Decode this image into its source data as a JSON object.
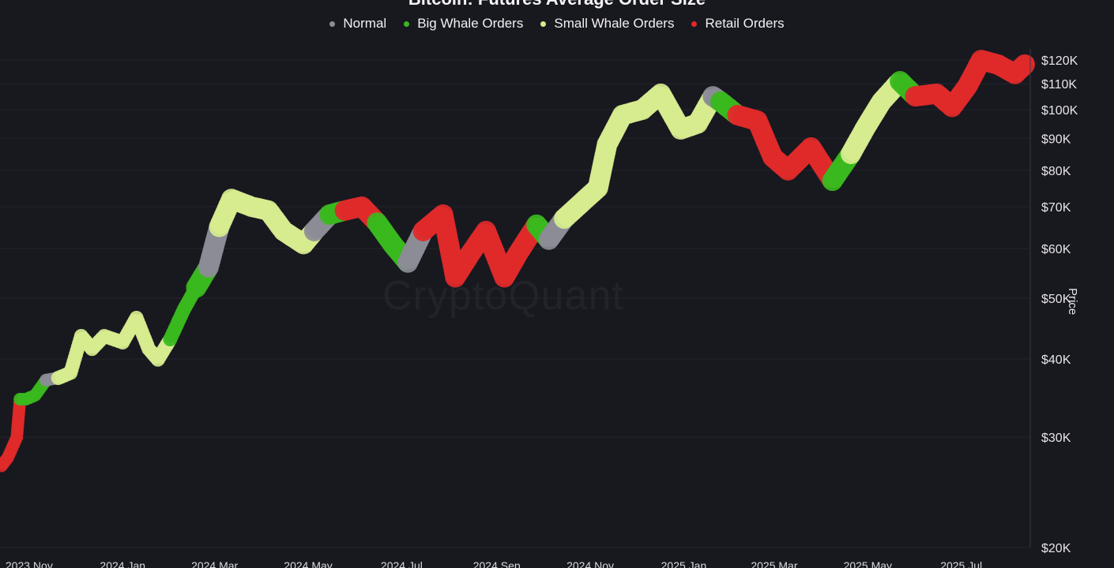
{
  "chart_data": {
    "type": "scatter",
    "title": "Bitcoin: Futures Average Order Size",
    "ylabel": "Price",
    "watermark": "CryptoQuant",
    "y_scale": "log",
    "ylim": [
      20000,
      125000
    ],
    "xlim": [
      "2023-10-13",
      "2025-08-15"
    ],
    "legend_position": "top-center",
    "legend": [
      {
        "name": "Normal",
        "color": "#8c8c96"
      },
      {
        "name": "Big Whale Orders",
        "color": "#3ab81e"
      },
      {
        "name": "Small Whale Orders",
        "color": "#d7ec8f"
      },
      {
        "name": "Retail Orders",
        "color": "#e02a2a"
      }
    ],
    "y_ticks": [
      {
        "label": "$20K",
        "value": 20000
      },
      {
        "label": "$30K",
        "value": 30000
      },
      {
        "label": "$40K",
        "value": 40000
      },
      {
        "label": "$50K",
        "value": 50000
      },
      {
        "label": "$60K",
        "value": 60000
      },
      {
        "label": "$70K",
        "value": 70000
      },
      {
        "label": "$80K",
        "value": 80000
      },
      {
        "label": "$90K",
        "value": 90000
      },
      {
        "label": "$100K",
        "value": 100000
      },
      {
        "label": "$110K",
        "value": 110000
      },
      {
        "label": "$120K",
        "value": 120000
      }
    ],
    "x_ticks": [
      {
        "label": "2023 Nov",
        "date": "2023-11-01"
      },
      {
        "label": "2024 Jan",
        "date": "2024-01-01"
      },
      {
        "label": "2024 Mar",
        "date": "2024-03-01"
      },
      {
        "label": "2024 May",
        "date": "2024-05-01"
      },
      {
        "label": "2024 Jul",
        "date": "2024-07-01"
      },
      {
        "label": "2024 Sep",
        "date": "2024-09-01"
      },
      {
        "label": "2024 Nov",
        "date": "2024-11-01"
      },
      {
        "label": "2025 Jan",
        "date": "2025-01-01"
      },
      {
        "label": "2025 Mar",
        "date": "2025-03-01"
      },
      {
        "label": "2025 May",
        "date": "2025-05-01"
      },
      {
        "label": "2025 Jul",
        "date": "2025-07-01"
      }
    ],
    "series": [
      {
        "name": "Price",
        "points": [
          {
            "date": "2023-10-14",
            "price": 27000,
            "class": "Retail Orders"
          },
          {
            "date": "2023-10-18",
            "price": 27800,
            "class": "Retail Orders"
          },
          {
            "date": "2023-10-20",
            "price": 28500,
            "class": "Retail Orders"
          },
          {
            "date": "2023-10-24",
            "price": 30000,
            "class": "Retail Orders"
          },
          {
            "date": "2023-10-26",
            "price": 34500,
            "class": "Big Whale Orders"
          },
          {
            "date": "2023-10-30",
            "price": 34500,
            "class": "Big Whale Orders"
          },
          {
            "date": "2023-11-05",
            "price": 35000,
            "class": "Big Whale Orders"
          },
          {
            "date": "2023-11-12",
            "price": 37000,
            "class": "Normal"
          },
          {
            "date": "2023-11-20",
            "price": 37300,
            "class": "Small Whale Orders"
          },
          {
            "date": "2023-11-28",
            "price": 38000,
            "class": "Small Whale Orders"
          },
          {
            "date": "2023-12-05",
            "price": 43500,
            "class": "Small Whale Orders"
          },
          {
            "date": "2023-12-12",
            "price": 41500,
            "class": "Small Whale Orders"
          },
          {
            "date": "2023-12-20",
            "price": 43500,
            "class": "Small Whale Orders"
          },
          {
            "date": "2024-01-01",
            "price": 42500,
            "class": "Small Whale Orders"
          },
          {
            "date": "2024-01-10",
            "price": 46500,
            "class": "Small Whale Orders"
          },
          {
            "date": "2024-01-18",
            "price": 41500,
            "class": "Small Whale Orders"
          },
          {
            "date": "2024-01-24",
            "price": 39900,
            "class": "Small Whale Orders"
          },
          {
            "date": "2024-02-01",
            "price": 43000,
            "class": "Big Whale Orders"
          },
          {
            "date": "2024-02-10",
            "price": 48000,
            "class": "Big Whale Orders"
          },
          {
            "date": "2024-02-18",
            "price": 52000,
            "class": "Big Whale Orders"
          },
          {
            "date": "2024-02-26",
            "price": 56000,
            "class": "Normal"
          },
          {
            "date": "2024-03-04",
            "price": 65000,
            "class": "Small Whale Orders"
          },
          {
            "date": "2024-03-12",
            "price": 72000,
            "class": "Small Whale Orders"
          },
          {
            "date": "2024-03-25",
            "price": 70000,
            "class": "Small Whale Orders"
          },
          {
            "date": "2024-04-05",
            "price": 69000,
            "class": "Small Whale Orders"
          },
          {
            "date": "2024-04-15",
            "price": 64000,
            "class": "Small Whale Orders"
          },
          {
            "date": "2024-04-28",
            "price": 61000,
            "class": "Small Whale Orders"
          },
          {
            "date": "2024-05-05",
            "price": 64000,
            "class": "Normal"
          },
          {
            "date": "2024-05-15",
            "price": 68000,
            "class": "Big Whale Orders"
          },
          {
            "date": "2024-05-25",
            "price": 69000,
            "class": "Retail Orders"
          },
          {
            "date": "2024-06-05",
            "price": 70000,
            "class": "Retail Orders"
          },
          {
            "date": "2024-06-15",
            "price": 66000,
            "class": "Big Whale Orders"
          },
          {
            "date": "2024-06-25",
            "price": 61000,
            "class": "Big Whale Orders"
          },
          {
            "date": "2024-07-05",
            "price": 57000,
            "class": "Normal"
          },
          {
            "date": "2024-07-15",
            "price": 64000,
            "class": "Retail Orders"
          },
          {
            "date": "2024-07-28",
            "price": 68000,
            "class": "Retail Orders"
          },
          {
            "date": "2024-08-05",
            "price": 54000,
            "class": "Retail Orders"
          },
          {
            "date": "2024-08-15",
            "price": 59000,
            "class": "Retail Orders"
          },
          {
            "date": "2024-08-25",
            "price": 64000,
            "class": "Retail Orders"
          },
          {
            "date": "2024-09-06",
            "price": 54000,
            "class": "Retail Orders"
          },
          {
            "date": "2024-09-15",
            "price": 59000,
            "class": "Retail Orders"
          },
          {
            "date": "2024-09-27",
            "price": 65500,
            "class": "Big Whale Orders"
          },
          {
            "date": "2024-10-05",
            "price": 62000,
            "class": "Normal"
          },
          {
            "date": "2024-10-15",
            "price": 67000,
            "class": "Small Whale Orders"
          },
          {
            "date": "2024-10-29",
            "price": 72000,
            "class": "Small Whale Orders"
          },
          {
            "date": "2024-11-06",
            "price": 75000,
            "class": "Small Whale Orders"
          },
          {
            "date": "2024-11-12",
            "price": 88000,
            "class": "Small Whale Orders"
          },
          {
            "date": "2024-11-22",
            "price": 98000,
            "class": "Small Whale Orders"
          },
          {
            "date": "2024-12-05",
            "price": 100000,
            "class": "Small Whale Orders"
          },
          {
            "date": "2024-12-17",
            "price": 106000,
            "class": "Small Whale Orders"
          },
          {
            "date": "2024-12-30",
            "price": 93000,
            "class": "Small Whale Orders"
          },
          {
            "date": "2025-01-10",
            "price": 95000,
            "class": "Small Whale Orders"
          },
          {
            "date": "2025-01-20",
            "price": 105000,
            "class": "Normal"
          },
          {
            "date": "2025-01-25",
            "price": 103000,
            "class": "Big Whale Orders"
          },
          {
            "date": "2025-02-05",
            "price": 98000,
            "class": "Retail Orders"
          },
          {
            "date": "2025-02-18",
            "price": 96000,
            "class": "Retail Orders"
          },
          {
            "date": "2025-02-28",
            "price": 84000,
            "class": "Retail Orders"
          },
          {
            "date": "2025-03-10",
            "price": 80000,
            "class": "Retail Orders"
          },
          {
            "date": "2025-03-25",
            "price": 87000,
            "class": "Retail Orders"
          },
          {
            "date": "2025-04-08",
            "price": 77000,
            "class": "Big Whale Orders"
          },
          {
            "date": "2025-04-20",
            "price": 85000,
            "class": "Small Whale Orders"
          },
          {
            "date": "2025-04-30",
            "price": 94000,
            "class": "Small Whale Orders"
          },
          {
            "date": "2025-05-10",
            "price": 103000,
            "class": "Small Whale Orders"
          },
          {
            "date": "2025-05-22",
            "price": 111000,
            "class": "Big Whale Orders"
          },
          {
            "date": "2025-06-01",
            "price": 105000,
            "class": "Retail Orders"
          },
          {
            "date": "2025-06-15",
            "price": 106000,
            "class": "Retail Orders"
          },
          {
            "date": "2025-06-25",
            "price": 101000,
            "class": "Retail Orders"
          },
          {
            "date": "2025-07-05",
            "price": 109000,
            "class": "Retail Orders"
          },
          {
            "date": "2025-07-14",
            "price": 120000,
            "class": "Retail Orders"
          },
          {
            "date": "2025-07-25",
            "price": 118000,
            "class": "Retail Orders"
          },
          {
            "date": "2025-08-05",
            "price": 114000,
            "class": "Retail Orders"
          },
          {
            "date": "2025-08-13",
            "price": 119000,
            "class": "Retail Orders"
          }
        ]
      }
    ]
  }
}
